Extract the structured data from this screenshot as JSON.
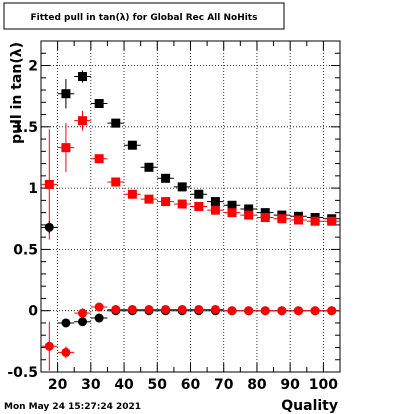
{
  "chart_data": {
    "type": "scatter",
    "title": "Fitted pull in tan(λ) for Global Rec All NoHits",
    "xlabel": "Quality",
    "ylabel": "pull in tan(λ)",
    "xlim": [
      15,
      105
    ],
    "ylim": [
      -0.5,
      2.2
    ],
    "x_ticks": [
      20,
      30,
      40,
      50,
      60,
      70,
      80,
      90,
      100
    ],
    "y_ticks": [
      -0.5,
      0,
      0.5,
      1,
      1.5,
      2
    ],
    "grid": true,
    "x_error": 2.5,
    "series": [
      {
        "color": "#000000",
        "marker": "square",
        "points": [
          {
            "x": 22.5,
            "y": 1.77,
            "err": 0.12
          },
          {
            "x": 27.5,
            "y": 1.91,
            "err": 0.05
          },
          {
            "x": 32.5,
            "y": 1.69,
            "err": 0.02
          },
          {
            "x": 37.5,
            "y": 1.53,
            "err": 0.01
          },
          {
            "x": 42.5,
            "y": 1.35,
            "err": 0.01
          },
          {
            "x": 47.5,
            "y": 1.17,
            "err": 0.01
          },
          {
            "x": 52.5,
            "y": 1.08,
            "err": 0.01
          },
          {
            "x": 57.5,
            "y": 1.01,
            "err": 0.01
          },
          {
            "x": 62.5,
            "y": 0.95,
            "err": 0.01
          },
          {
            "x": 67.5,
            "y": 0.89,
            "err": 0.01
          },
          {
            "x": 72.5,
            "y": 0.86,
            "err": 0.01
          },
          {
            "x": 77.5,
            "y": 0.83,
            "err": 0.01
          },
          {
            "x": 82.5,
            "y": 0.8,
            "err": 0.01
          },
          {
            "x": 87.5,
            "y": 0.78,
            "err": 0.01
          },
          {
            "x": 92.5,
            "y": 0.77,
            "err": 0.01
          },
          {
            "x": 97.5,
            "y": 0.76,
            "err": 0.01
          },
          {
            "x": 102.5,
            "y": 0.75,
            "err": 0.01
          }
        ]
      },
      {
        "color": "#ff0000",
        "marker": "square",
        "points": [
          {
            "x": 17.5,
            "y": 1.03,
            "err": 0.45
          },
          {
            "x": 22.5,
            "y": 1.33,
            "err": 0.2
          },
          {
            "x": 27.5,
            "y": 1.55,
            "err": 0.08
          },
          {
            "x": 32.5,
            "y": 1.24,
            "err": 0.02
          },
          {
            "x": 37.5,
            "y": 1.05,
            "err": 0.01
          },
          {
            "x": 42.5,
            "y": 0.95,
            "err": 0.01
          },
          {
            "x": 47.5,
            "y": 0.91,
            "err": 0.01
          },
          {
            "x": 52.5,
            "y": 0.89,
            "err": 0.01
          },
          {
            "x": 57.5,
            "y": 0.87,
            "err": 0.01
          },
          {
            "x": 62.5,
            "y": 0.85,
            "err": 0.01
          },
          {
            "x": 67.5,
            "y": 0.82,
            "err": 0.01
          },
          {
            "x": 72.5,
            "y": 0.8,
            "err": 0.01
          },
          {
            "x": 77.5,
            "y": 0.78,
            "err": 0.01
          },
          {
            "x": 82.5,
            "y": 0.76,
            "err": 0.01
          },
          {
            "x": 87.5,
            "y": 0.75,
            "err": 0.01
          },
          {
            "x": 92.5,
            "y": 0.74,
            "err": 0.01
          },
          {
            "x": 97.5,
            "y": 0.73,
            "err": 0.01
          },
          {
            "x": 102.5,
            "y": 0.73,
            "err": 0.01
          }
        ]
      },
      {
        "color": "#000000",
        "marker": "circle",
        "points": [
          {
            "x": 17.5,
            "y": 0.68,
            "err": 0.05
          },
          {
            "x": 22.5,
            "y": -0.1,
            "err": 0.03
          },
          {
            "x": 27.5,
            "y": -0.09,
            "err": 0.02
          },
          {
            "x": 32.5,
            "y": -0.06,
            "err": 0.01
          },
          {
            "x": 37.5,
            "y": 0.0,
            "err": 0.01
          },
          {
            "x": 42.5,
            "y": 0.0,
            "err": 0.01
          },
          {
            "x": 47.5,
            "y": 0.0,
            "err": 0.01
          },
          {
            "x": 52.5,
            "y": 0.0,
            "err": 0.01
          },
          {
            "x": 57.5,
            "y": 0.0,
            "err": 0.01
          },
          {
            "x": 62.5,
            "y": 0.0,
            "err": 0.01
          },
          {
            "x": 67.5,
            "y": 0.0,
            "err": 0.01
          },
          {
            "x": 72.5,
            "y": 0.0,
            "err": 0.01
          },
          {
            "x": 77.5,
            "y": 0.0,
            "err": 0.01
          },
          {
            "x": 82.5,
            "y": 0.0,
            "err": 0.01
          },
          {
            "x": 87.5,
            "y": 0.0,
            "err": 0.01
          },
          {
            "x": 92.5,
            "y": 0.0,
            "err": 0.01
          },
          {
            "x": 97.5,
            "y": 0.0,
            "err": 0.01
          },
          {
            "x": 102.5,
            "y": 0.0,
            "err": 0.01
          }
        ]
      },
      {
        "color": "#ff0000",
        "marker": "circle",
        "points": [
          {
            "x": 17.5,
            "y": -0.29,
            "err": 0.2
          },
          {
            "x": 22.5,
            "y": -0.34,
            "err": 0.05
          },
          {
            "x": 27.5,
            "y": -0.02,
            "err": 0.04
          },
          {
            "x": 32.5,
            "y": 0.03,
            "err": 0.01
          },
          {
            "x": 37.5,
            "y": 0.01,
            "err": 0.01
          },
          {
            "x": 42.5,
            "y": 0.01,
            "err": 0.01
          },
          {
            "x": 47.5,
            "y": 0.01,
            "err": 0.01
          },
          {
            "x": 52.5,
            "y": 0.01,
            "err": 0.01
          },
          {
            "x": 57.5,
            "y": 0.01,
            "err": 0.01
          },
          {
            "x": 62.5,
            "y": 0.01,
            "err": 0.01
          },
          {
            "x": 67.5,
            "y": 0.01,
            "err": 0.01
          },
          {
            "x": 72.5,
            "y": 0.0,
            "err": 0.01
          },
          {
            "x": 77.5,
            "y": 0.0,
            "err": 0.01
          },
          {
            "x": 82.5,
            "y": 0.0,
            "err": 0.01
          },
          {
            "x": 87.5,
            "y": 0.0,
            "err": 0.01
          },
          {
            "x": 92.5,
            "y": 0.0,
            "err": 0.01
          },
          {
            "x": 97.5,
            "y": 0.0,
            "err": 0.01
          },
          {
            "x": 102.5,
            "y": 0.0,
            "err": 0.01
          }
        ]
      }
    ]
  },
  "footer": {
    "timestamp": "Mon May 24 15:27:24 2021"
  }
}
